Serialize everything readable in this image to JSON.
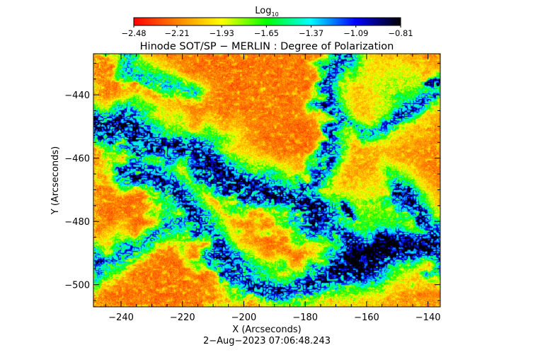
{
  "chart_data": {
    "type": "heatmap",
    "title": "Hinode SOT/SP − MERLIN : Degree of Polarization",
    "xlabel": "X (Arcseconds)",
    "ylabel": "Y (Arcseconds)",
    "timestamp": "2−Aug−2023 07:06:48.243",
    "xlim": [
      -249,
      -136
    ],
    "ylim": [
      -507,
      -427
    ],
    "x_ticks": [
      -240,
      -220,
      -200,
      -180,
      -160,
      -140
    ],
    "x_tick_labels": [
      "−240",
      "−220",
      "−200",
      "−180",
      "−160",
      "−140"
    ],
    "y_ticks": [
      -440,
      -460,
      -480,
      -500
    ],
    "y_tick_labels": [
      "−440",
      "−460",
      "−480",
      "−500"
    ],
    "colorbar": {
      "label_base": "Log",
      "label_sub": "10",
      "range": [
        -2.48,
        -0.81
      ],
      "ticks": [
        -2.48,
        -2.21,
        -1.93,
        -1.65,
        -1.37,
        -1.09,
        -0.81
      ],
      "tick_labels": [
        "−2.48",
        "−2.21",
        "−1.93",
        "−1.65",
        "−1.37",
        "−1.09",
        "−0.81"
      ],
      "colors": [
        "#ff0000",
        "#ff7a00",
        "#ffff00",
        "#00ff00",
        "#00ffff",
        "#0000ff",
        "#000000"
      ]
    },
    "colormap_stops": [
      {
        "v": 0.0,
        "color": "#ff0000"
      },
      {
        "v": 0.16,
        "color": "#ff8000"
      },
      {
        "v": 0.33,
        "color": "#ffff00"
      },
      {
        "v": 0.5,
        "color": "#00ff00"
      },
      {
        "v": 0.66,
        "color": "#00ffff"
      },
      {
        "v": 0.83,
        "color": "#0000ff"
      },
      {
        "v": 1.0,
        "color": "#000000"
      }
    ],
    "features": [
      {
        "type": "network",
        "points": [
          [
            -249,
            -450
          ],
          [
            -238,
            -452
          ],
          [
            -228,
            -455
          ],
          [
            -218,
            -458
          ],
          [
            -210,
            -462
          ],
          [
            -202,
            -467
          ],
          [
            -195,
            -470
          ],
          [
            -185,
            -473
          ],
          [
            -176,
            -478
          ]
        ],
        "width": 5.0,
        "strength": 0.95
      },
      {
        "type": "network",
        "points": [
          [
            -236,
            -463
          ],
          [
            -226,
            -468
          ],
          [
            -218,
            -474
          ],
          [
            -212,
            -482
          ],
          [
            -207,
            -491
          ],
          [
            -200,
            -498
          ],
          [
            -190,
            -502
          ],
          [
            -180,
            -500
          ],
          [
            -171,
            -497
          ],
          [
            -162,
            -492
          ],
          [
            -154,
            -489
          ],
          [
            -146,
            -488
          ],
          [
            -136,
            -486
          ]
        ],
        "width": 4.0,
        "strength": 0.85
      },
      {
        "type": "network",
        "points": [
          [
            -248,
            -495
          ],
          [
            -241,
            -490
          ],
          [
            -231,
            -486
          ],
          [
            -222,
            -482
          ],
          [
            -214,
            -476
          ]
        ],
        "width": 3.0,
        "strength": 0.7
      },
      {
        "type": "network",
        "points": [
          [
            -183,
            -472
          ],
          [
            -176,
            -464
          ],
          [
            -172,
            -456
          ],
          [
            -170,
            -447
          ],
          [
            -173,
            -438
          ],
          [
            -171,
            -430
          ],
          [
            -166,
            -427
          ]
        ],
        "width": 3.2,
        "strength": 0.8
      },
      {
        "type": "network",
        "points": [
          [
            -240,
            -427
          ],
          [
            -234,
            -434
          ],
          [
            -226,
            -437
          ],
          [
            -216,
            -438
          ]
        ],
        "width": 2.5,
        "strength": 0.6
      },
      {
        "type": "network",
        "points": [
          [
            -170,
            -447
          ],
          [
            -161,
            -452
          ],
          [
            -154,
            -449
          ],
          [
            -146,
            -444
          ],
          [
            -137,
            -441
          ]
        ],
        "width": 2.4,
        "strength": 0.6
      },
      {
        "type": "network",
        "points": [
          [
            -149,
            -468
          ],
          [
            -143,
            -476
          ],
          [
            -139,
            -484
          ],
          [
            -136,
            -496
          ]
        ],
        "width": 3.0,
        "strength": 0.75
      },
      {
        "type": "network",
        "points": [
          [
            -176,
            -478
          ],
          [
            -170,
            -483
          ],
          [
            -165,
            -487
          ]
        ],
        "width": 2.4,
        "strength": 0.7
      },
      {
        "type": "core",
        "x": -223,
        "y": -456,
        "r": 2.8,
        "strength": 1.05
      },
      {
        "type": "core",
        "x": -166,
        "y": -476,
        "r": 2.2,
        "strength": 1.12
      },
      {
        "type": "core",
        "x": -186,
        "y": -470,
        "r": 1.4,
        "strength": 0.95
      },
      {
        "type": "core",
        "x": -137,
        "y": -436,
        "r": 1.8,
        "strength": 1.0
      },
      {
        "type": "core",
        "x": -248,
        "y": -451,
        "r": 1.8,
        "strength": 0.95
      },
      {
        "type": "core",
        "x": -193,
        "y": -503,
        "r": 1.4,
        "strength": 0.9
      },
      {
        "type": "core",
        "x": -172,
        "y": -495,
        "r": 1.2,
        "strength": 0.85
      },
      {
        "type": "plage",
        "x": -155,
        "y": -482,
        "r": 11,
        "strength": 0.4
      },
      {
        "type": "plage",
        "x": -150,
        "y": -440,
        "r": 9,
        "strength": 0.33
      },
      {
        "type": "plage",
        "x": -160,
        "y": -495,
        "r": 7,
        "strength": 0.3
      }
    ]
  }
}
